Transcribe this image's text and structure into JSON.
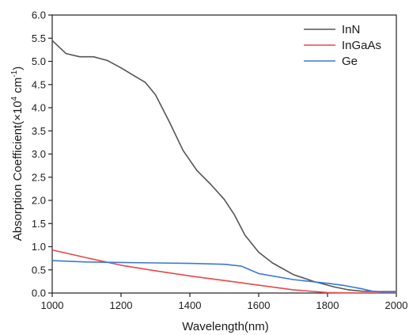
{
  "chart_data": {
    "type": "line",
    "xlabel": "Wavelength(nm)",
    "ylabel_main": "Absorption Coefficient(×10",
    "ylabel_exp1": "4",
    "ylabel_mid": " cm",
    "ylabel_exp2": "-1",
    "ylabel_end": ")",
    "xlim": [
      1000,
      2000
    ],
    "ylim": [
      0,
      6
    ],
    "x_ticks": [
      "1000",
      "1200",
      "1400",
      "1600",
      "1800",
      "2000"
    ],
    "y_ticks": [
      "0.0",
      "0.5",
      "1.0",
      "1.5",
      "2.0",
      "2.5",
      "3.0",
      "3.5",
      "4.0",
      "4.5",
      "5.0",
      "5.5",
      "6.0"
    ],
    "legend_position": "top-right",
    "grid": false,
    "series": [
      {
        "name": "InN",
        "color": "#555555",
        "points": [
          [
            1000,
            5.45
          ],
          [
            1040,
            5.17
          ],
          [
            1080,
            5.1
          ],
          [
            1120,
            5.1
          ],
          [
            1160,
            5.02
          ],
          [
            1200,
            4.86
          ],
          [
            1240,
            4.68
          ],
          [
            1270,
            4.55
          ],
          [
            1300,
            4.28
          ],
          [
            1340,
            3.7
          ],
          [
            1380,
            3.08
          ],
          [
            1420,
            2.65
          ],
          [
            1460,
            2.35
          ],
          [
            1500,
            2.02
          ],
          [
            1530,
            1.68
          ],
          [
            1560,
            1.25
          ],
          [
            1600,
            0.88
          ],
          [
            1640,
            0.65
          ],
          [
            1700,
            0.4
          ],
          [
            1760,
            0.25
          ],
          [
            1820,
            0.13
          ],
          [
            1860,
            0.07
          ],
          [
            1900,
            0.04
          ],
          [
            1950,
            0.03
          ],
          [
            2000,
            0.03
          ]
        ]
      },
      {
        "name": "InGaAs",
        "color": "#e8474b",
        "points": [
          [
            1000,
            0.93
          ],
          [
            1100,
            0.76
          ],
          [
            1200,
            0.6
          ],
          [
            1300,
            0.48
          ],
          [
            1400,
            0.37
          ],
          [
            1500,
            0.27
          ],
          [
            1600,
            0.17
          ],
          [
            1700,
            0.07
          ],
          [
            1800,
            0.01
          ],
          [
            1900,
            0.0
          ],
          [
            2000,
            0.0
          ]
        ]
      },
      {
        "name": "Ge",
        "color": "#3b78d8",
        "points": [
          [
            1000,
            0.7
          ],
          [
            1100,
            0.67
          ],
          [
            1200,
            0.66
          ],
          [
            1300,
            0.65
          ],
          [
            1400,
            0.64
          ],
          [
            1500,
            0.62
          ],
          [
            1550,
            0.58
          ],
          [
            1600,
            0.42
          ],
          [
            1700,
            0.29
          ],
          [
            1800,
            0.21
          ],
          [
            1850,
            0.16
          ],
          [
            1900,
            0.09
          ],
          [
            1930,
            0.04
          ],
          [
            1960,
            0.02
          ],
          [
            2000,
            0.02
          ]
        ]
      }
    ]
  }
}
